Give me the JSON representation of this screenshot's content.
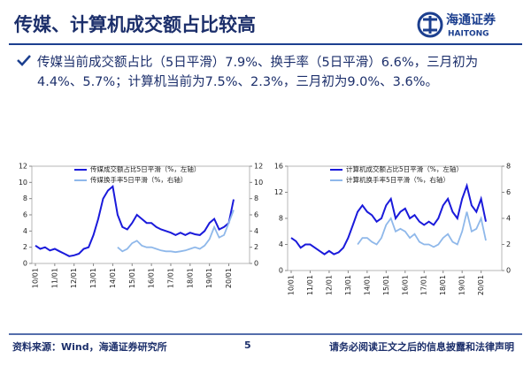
{
  "header": {
    "title": "传媒、计算机成交额占比较高",
    "logo_cn": "海通证券",
    "logo_en": "HAITONG"
  },
  "bullet": "传媒当前成交额占比（5日平滑）7.9%、换手率（5日平滑）6.6%，三月初为4.4%、5.7%；计算机当前为7.5%、2.3%，三月初为9.0%、3.6%。",
  "footer": {
    "source": "资料来源：Wind，海通证券研究所",
    "page": "5",
    "disclaimer": "请务必阅读正文之后的信息披露和法律声明"
  },
  "chart_data": [
    {
      "type": "line",
      "x": [
        "10/01",
        "10/04",
        "10/07",
        "10/10",
        "11/01",
        "11/04",
        "11/07",
        "11/10",
        "12/01",
        "12/04",
        "12/07",
        "12/10",
        "13/01",
        "13/04",
        "13/07",
        "13/10",
        "14/01",
        "14/04",
        "14/07",
        "14/10",
        "15/01",
        "15/04",
        "15/07",
        "15/10",
        "16/01",
        "16/04",
        "16/07",
        "16/10",
        "17/01",
        "17/04",
        "17/07",
        "17/10",
        "18/01",
        "18/04",
        "18/07",
        "18/10",
        "19/01",
        "19/04",
        "19/07",
        "19/10",
        "20/01",
        "20/04"
      ],
      "xticks": [
        "10/01",
        "11/01",
        "12/01",
        "13/01",
        "14/01",
        "15/01",
        "16/01",
        "17/01",
        "18/01",
        "19/01",
        "20/01"
      ],
      "ylim": [
        0,
        12
      ],
      "yticks": [
        0,
        2,
        4,
        6,
        8,
        10,
        12
      ],
      "y2lim": [
        0,
        12
      ],
      "y2ticks": [
        0,
        2,
        4,
        6,
        8,
        10,
        12
      ],
      "series": [
        {
          "name": "传媒成交额占比5日平滑（%，左轴）",
          "color": "#1a1adb",
          "values": [
            2.2,
            1.8,
            2.0,
            1.6,
            1.8,
            1.5,
            1.2,
            0.9,
            1.0,
            1.2,
            1.8,
            2.0,
            3.5,
            5.5,
            8.0,
            9.0,
            9.5,
            6.0,
            4.5,
            4.2,
            5.0,
            6.0,
            5.5,
            5.0,
            5.0,
            4.5,
            4.2,
            4.0,
            3.8,
            3.5,
            3.8,
            3.5,
            3.8,
            3.6,
            3.5,
            4.0,
            5.0,
            5.5,
            4.2,
            4.5,
            5.0,
            7.9
          ]
        },
        {
          "name": "传媒换手率5日平滑（%，右轴）",
          "color": "#8fb8ea",
          "axis": "y2",
          "values": [
            null,
            null,
            null,
            null,
            null,
            null,
            null,
            null,
            null,
            null,
            null,
            null,
            null,
            null,
            null,
            null,
            null,
            2.0,
            1.5,
            1.8,
            2.5,
            2.8,
            2.2,
            2.0,
            2.0,
            1.8,
            1.6,
            1.5,
            1.5,
            1.4,
            1.5,
            1.6,
            1.8,
            2.0,
            1.8,
            2.2,
            3.0,
            4.5,
            3.2,
            3.5,
            5.0,
            6.6
          ]
        }
      ]
    },
    {
      "type": "line",
      "x": [
        "10/01",
        "10/04",
        "10/07",
        "10/10",
        "11/01",
        "11/04",
        "11/07",
        "11/10",
        "12/01",
        "12/04",
        "12/07",
        "12/10",
        "13/01",
        "13/04",
        "13/07",
        "13/10",
        "14/01",
        "14/04",
        "14/07",
        "14/10",
        "15/01",
        "15/04",
        "15/07",
        "15/10",
        "16/01",
        "16/04",
        "16/07",
        "16/10",
        "17/01",
        "17/04",
        "17/07",
        "17/10",
        "18/01",
        "18/04",
        "18/07",
        "18/10",
        "19/01",
        "19/04",
        "19/07",
        "19/10",
        "20/01",
        "20/04"
      ],
      "xticks": [
        "10/01",
        "11/01",
        "12/01",
        "13/01",
        "14/01",
        "15/01",
        "16/01",
        "17/01",
        "18/01",
        "19/01",
        "20/01"
      ],
      "ylim": [
        0,
        16
      ],
      "yticks": [
        0,
        4,
        8,
        12,
        16
      ],
      "y2lim": [
        0,
        8
      ],
      "y2ticks": [
        0,
        2,
        4,
        6,
        8
      ],
      "series": [
        {
          "name": "计算机成交额占比5日平滑（%，左轴）",
          "color": "#1a1adb",
          "values": [
            5.0,
            4.5,
            3.5,
            4.0,
            4.0,
            3.5,
            3.0,
            2.5,
            3.0,
            2.5,
            2.8,
            3.5,
            5.0,
            7.0,
            9.0,
            10.0,
            9.0,
            8.5,
            7.5,
            8.0,
            10.0,
            11.0,
            8.0,
            9.0,
            9.5,
            8.0,
            8.5,
            7.5,
            7.0,
            7.5,
            7.0,
            8.0,
            10.0,
            11.0,
            9.0,
            8.0,
            11.0,
            13.0,
            10.0,
            9.0,
            11.0,
            7.5
          ]
        },
        {
          "name": "计算机换手率5日平滑（%，右轴）",
          "color": "#8fb8ea",
          "axis": "y2",
          "values": [
            null,
            null,
            null,
            null,
            null,
            null,
            null,
            null,
            null,
            null,
            null,
            null,
            null,
            null,
            2.0,
            2.5,
            2.5,
            2.2,
            2.0,
            2.5,
            3.5,
            4.0,
            3.0,
            3.2,
            3.0,
            2.5,
            2.8,
            2.2,
            2.0,
            2.0,
            1.8,
            2.0,
            2.5,
            2.8,
            2.2,
            2.0,
            3.0,
            4.5,
            3.0,
            3.2,
            4.0,
            2.3
          ]
        }
      ]
    }
  ]
}
